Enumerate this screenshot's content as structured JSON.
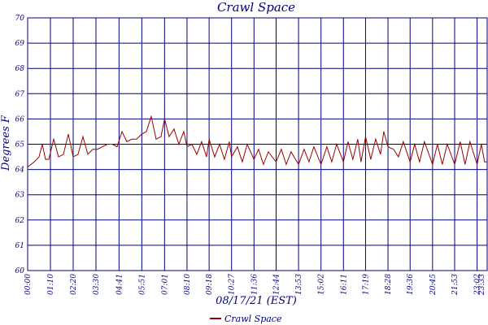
{
  "colors": {
    "line": "#990000",
    "grid": "#000080",
    "text": "#000080"
  },
  "chart_data": {
    "type": "line",
    "title": "Crawl Space",
    "ylabel": "Degrees F",
    "xlabel": "08/17/21 (EST)",
    "ylim": [
      60,
      70
    ],
    "yticks": [
      60,
      61,
      62,
      63,
      64,
      65,
      66,
      67,
      68,
      69,
      70
    ],
    "xticks": [
      "00:00",
      "01:10",
      "02:20",
      "03:30",
      "04:41",
      "05:51",
      "07:01",
      "08:10",
      "09:18",
      "10:27",
      "11:36",
      "12:44",
      "13:53",
      "15:02",
      "16:11",
      "17:19",
      "18:28",
      "19:36",
      "20:45",
      "21:53",
      "23:02",
      "23:33"
    ],
    "grid": true,
    "legend": "bottom-center",
    "series": [
      {
        "name": "Crawl Space",
        "x": [
          "00:00",
          "00:20",
          "00:35",
          "00:45",
          "00:55",
          "01:05",
          "01:20",
          "01:35",
          "01:50",
          "02:05",
          "02:20",
          "02:35",
          "02:50",
          "03:05",
          "03:20",
          "03:35",
          "03:50",
          "04:05",
          "04:20",
          "04:35",
          "04:50",
          "05:05",
          "05:20",
          "05:35",
          "05:51",
          "06:05",
          "06:20",
          "06:35",
          "06:50",
          "07:01",
          "07:15",
          "07:30",
          "07:45",
          "08:00",
          "08:10",
          "08:25",
          "08:40",
          "08:55",
          "09:10",
          "09:18",
          "09:35",
          "09:50",
          "10:05",
          "10:20",
          "10:27",
          "10:45",
          "11:00",
          "11:15",
          "11:36",
          "11:50",
          "12:05",
          "12:20",
          "12:44",
          "13:00",
          "13:15",
          "13:30",
          "13:53",
          "14:10",
          "14:25",
          "14:40",
          "15:02",
          "15:20",
          "15:35",
          "15:50",
          "16:11",
          "16:25",
          "16:40",
          "16:55",
          "17:05",
          "17:19",
          "17:35",
          "17:50",
          "18:05",
          "18:15",
          "18:28",
          "18:45",
          "19:00",
          "19:15",
          "19:36",
          "19:50",
          "20:05",
          "20:20",
          "20:45",
          "21:00",
          "21:15",
          "21:30",
          "21:53",
          "22:10",
          "22:25",
          "22:40",
          "23:02",
          "23:15",
          "23:25",
          "23:33"
        ],
        "values": [
          64.1,
          64.3,
          64.5,
          65.0,
          64.4,
          64.4,
          65.2,
          64.5,
          64.6,
          65.4,
          64.5,
          64.6,
          65.3,
          64.6,
          64.8,
          64.8,
          64.9,
          65.0,
          65.0,
          64.9,
          65.5,
          65.1,
          65.2,
          65.2,
          65.4,
          65.5,
          66.1,
          65.2,
          65.3,
          66.0,
          65.3,
          65.6,
          65.0,
          65.5,
          64.9,
          65.0,
          64.6,
          65.1,
          64.5,
          65.2,
          64.5,
          65.0,
          64.4,
          65.1,
          64.5,
          64.9,
          64.3,
          65.0,
          64.4,
          64.8,
          64.2,
          64.7,
          64.3,
          64.8,
          64.2,
          64.7,
          64.2,
          64.8,
          64.3,
          64.9,
          64.2,
          64.9,
          64.3,
          65.0,
          64.3,
          65.1,
          64.4,
          65.2,
          64.3,
          65.3,
          64.4,
          65.2,
          64.6,
          65.5,
          64.9,
          64.8,
          64.5,
          65.1,
          64.3,
          65.0,
          64.3,
          65.1,
          64.2,
          65.0,
          64.2,
          65.0,
          64.2,
          65.1,
          64.2,
          65.1,
          64.2,
          65.0,
          64.3,
          64.3
        ]
      }
    ]
  }
}
